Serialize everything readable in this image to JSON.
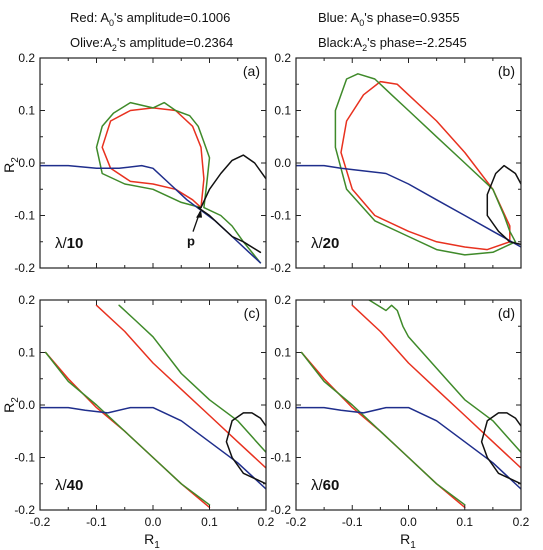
{
  "legend": [
    {
      "id": "red",
      "text": "Red: A0's amplitude=0.1006",
      "main": "Red: A",
      "sub": "0",
      "rest": "'s amplitude=0.1006"
    },
    {
      "id": "blue",
      "text": "Blue: A0's phase=0.9355",
      "main": "Blue: A",
      "sub": "0",
      "rest": "'s phase=0.9355"
    },
    {
      "id": "olive",
      "text": "Olive:A2's amplitude=0.2364",
      "main": "Olive:A",
      "sub": "2",
      "rest": "'s amplitude=0.2364"
    },
    {
      "id": "black",
      "text": "Black:A2's phase=-2.2545",
      "main": "Black:A",
      "sub": "2",
      "rest": "'s phase=-2.2545"
    }
  ],
  "axes": {
    "xlabel_main": "R",
    "xlabel_sub": "1",
    "ylabel_main": "R",
    "ylabel_sub": "2",
    "xlim": [
      -0.2,
      0.2
    ],
    "ylim": [
      -0.2,
      0.2
    ],
    "xticks": [
      "-0.2",
      "-0.1",
      "0.0",
      "0.1",
      "0.2"
    ],
    "yticks": [
      "-0.2",
      "-0.1",
      "0.0",
      "0.1",
      "0.2"
    ]
  },
  "colors": {
    "red": "#e8311f",
    "blue": "#1f2e8c",
    "olive": "#3f8a2a",
    "black": "#111111"
  },
  "chart_data": [
    {
      "type": "line",
      "panel": "(a)",
      "lambda_symbol": "λ/",
      "lambda_value": "10",
      "point_label": "p",
      "series": [
        {
          "color": "red",
          "x": [
            0.085,
            0.07,
            0.04,
            0.0,
            -0.04,
            -0.075,
            -0.09,
            -0.075,
            -0.04,
            0.0,
            0.04,
            0.07,
            0.085,
            0.09,
            0.085
          ],
          "y": [
            -0.085,
            -0.07,
            -0.05,
            -0.04,
            -0.035,
            -0.01,
            0.03,
            0.08,
            0.1,
            0.105,
            0.1,
            0.07,
            0.03,
            -0.03,
            -0.085
          ]
        },
        {
          "color": "olive",
          "x": [
            0.085,
            0.05,
            0.0,
            -0.05,
            -0.09,
            -0.1,
            -0.09,
            -0.07,
            -0.04,
            0.0,
            0.02,
            0.04,
            0.065,
            0.08,
            0.09,
            0.1,
            0.095,
            0.09,
            0.12,
            0.14,
            0.16,
            0.19
          ],
          "y": [
            -0.085,
            -0.075,
            -0.05,
            -0.04,
            -0.02,
            0.03,
            0.07,
            0.095,
            0.115,
            0.105,
            0.115,
            0.1,
            0.09,
            0.07,
            0.04,
            0.01,
            -0.04,
            -0.085,
            -0.1,
            -0.12,
            -0.15,
            -0.19
          ]
        },
        {
          "color": "blue",
          "x": [
            -0.2,
            -0.15,
            -0.1,
            -0.06,
            -0.02,
            0.0,
            0.03,
            0.06,
            0.085,
            0.11,
            0.14,
            0.17,
            0.19
          ],
          "y": [
            -0.005,
            -0.005,
            -0.01,
            -0.01,
            -0.005,
            -0.01,
            -0.04,
            -0.07,
            -0.09,
            -0.11,
            -0.14,
            -0.17,
            -0.19
          ]
        },
        {
          "color": "black",
          "x": [
            0.2,
            0.18,
            0.16,
            0.14,
            0.12,
            0.1,
            0.085,
            0.08,
            0.1,
            0.12,
            0.14,
            0.16,
            0.19
          ],
          "y": [
            -0.03,
            0.0,
            0.015,
            0.005,
            -0.02,
            -0.05,
            -0.085,
            -0.085,
            -0.1,
            -0.12,
            -0.14,
            -0.15,
            -0.17
          ]
        }
      ]
    },
    {
      "type": "line",
      "panel": "(b)",
      "lambda_symbol": "λ/",
      "lambda_value": "20",
      "series": [
        {
          "color": "red",
          "x": [
            0.18,
            0.14,
            0.1,
            0.05,
            0.0,
            -0.06,
            -0.1,
            -0.12,
            -0.11,
            -0.08,
            -0.05,
            -0.02,
            0.0,
            0.05,
            0.1,
            0.15,
            0.18,
            0.18
          ],
          "y": [
            -0.15,
            -0.165,
            -0.16,
            -0.15,
            -0.13,
            -0.1,
            -0.05,
            0.02,
            0.08,
            0.13,
            0.155,
            0.15,
            0.13,
            0.08,
            0.02,
            -0.05,
            -0.12,
            -0.15
          ]
        },
        {
          "color": "olive",
          "x": [
            0.19,
            0.15,
            0.1,
            0.05,
            0.0,
            -0.06,
            -0.11,
            -0.13,
            -0.13,
            -0.11,
            -0.09,
            -0.06,
            -0.03,
            0.0,
            0.05,
            0.1,
            0.15,
            0.17,
            0.18,
            0.19
          ],
          "y": [
            -0.15,
            -0.17,
            -0.175,
            -0.165,
            -0.14,
            -0.11,
            -0.05,
            0.03,
            0.1,
            0.16,
            0.17,
            0.16,
            0.13,
            0.1,
            0.05,
            0.0,
            -0.05,
            -0.1,
            -0.13,
            -0.15
          ]
        },
        {
          "color": "blue",
          "x": [
            -0.2,
            -0.15,
            -0.12,
            -0.08,
            -0.04,
            0.0,
            0.05,
            0.1,
            0.15,
            0.2
          ],
          "y": [
            -0.005,
            -0.005,
            -0.01,
            -0.015,
            -0.02,
            -0.04,
            -0.07,
            -0.1,
            -0.13,
            -0.16
          ]
        },
        {
          "color": "black",
          "x": [
            0.2,
            0.19,
            0.17,
            0.155,
            0.14,
            0.14,
            0.16,
            0.18,
            0.2
          ],
          "y": [
            -0.04,
            -0.02,
            -0.005,
            -0.02,
            -0.06,
            -0.1,
            -0.13,
            -0.15,
            -0.155
          ]
        }
      ]
    },
    {
      "type": "line",
      "panel": "(c)",
      "lambda_symbol": "λ/",
      "lambda_value": "40",
      "series": [
        {
          "color": "red",
          "x": [
            -0.1,
            -0.05,
            0.0,
            0.05,
            0.1,
            0.15,
            0.2
          ],
          "y": [
            0.19,
            0.14,
            0.08,
            0.03,
            -0.02,
            -0.07,
            -0.12
          ],
          "offset": 0
        },
        {
          "color": "red",
          "x": [
            -0.19,
            -0.15,
            -0.1,
            -0.05,
            0.0,
            0.05,
            0.1
          ],
          "y": [
            0.1,
            0.05,
            -0.005,
            -0.05,
            -0.1,
            -0.15,
            -0.195
          ]
        },
        {
          "color": "olive",
          "x": [
            -0.06,
            -0.03,
            0.0,
            0.05,
            0.1,
            0.15,
            0.2
          ],
          "y": [
            0.19,
            0.16,
            0.13,
            0.06,
            0.01,
            -0.03,
            -0.09
          ]
        },
        {
          "color": "olive",
          "x": [
            -0.19,
            -0.15,
            -0.1,
            -0.06,
            -0.02,
            0.0,
            0.05,
            0.1
          ],
          "y": [
            0.1,
            0.045,
            0.0,
            -0.04,
            -0.08,
            -0.1,
            -0.15,
            -0.19
          ]
        },
        {
          "color": "blue",
          "x": [
            -0.2,
            -0.15,
            -0.12,
            -0.08,
            -0.04,
            0.0,
            0.05,
            0.1,
            0.15,
            0.2
          ],
          "y": [
            -0.005,
            -0.005,
            -0.01,
            -0.015,
            -0.005,
            -0.005,
            -0.03,
            -0.07,
            -0.11,
            -0.16
          ]
        },
        {
          "color": "black",
          "x": [
            0.2,
            0.19,
            0.175,
            0.16,
            0.14,
            0.13,
            0.14,
            0.16,
            0.2
          ],
          "y": [
            -0.04,
            -0.025,
            -0.015,
            -0.015,
            -0.03,
            -0.07,
            -0.1,
            -0.13,
            -0.15
          ]
        }
      ]
    },
    {
      "type": "line",
      "panel": "(d)",
      "lambda_symbol": "λ/",
      "lambda_value": "60",
      "series": [
        {
          "color": "red",
          "x": [
            -0.1,
            -0.05,
            0.0,
            0.05,
            0.1,
            0.15,
            0.2
          ],
          "y": [
            0.19,
            0.14,
            0.08,
            0.03,
            -0.02,
            -0.07,
            -0.12
          ]
        },
        {
          "color": "red",
          "x": [
            -0.19,
            -0.15,
            -0.1,
            -0.05,
            0.0,
            0.05,
            0.1
          ],
          "y": [
            0.1,
            0.05,
            -0.005,
            -0.05,
            -0.1,
            -0.15,
            -0.195
          ]
        },
        {
          "color": "olive",
          "x": [
            -0.07,
            -0.04,
            -0.03,
            -0.02,
            -0.01,
            0.0,
            0.05,
            0.1,
            0.15,
            0.2
          ],
          "y": [
            0.2,
            0.18,
            0.19,
            0.18,
            0.15,
            0.13,
            0.07,
            0.01,
            -0.03,
            -0.09
          ]
        },
        {
          "color": "olive",
          "x": [
            -0.19,
            -0.15,
            -0.1,
            -0.06,
            -0.02,
            0.0,
            0.05,
            0.1
          ],
          "y": [
            0.1,
            0.045,
            0.0,
            -0.04,
            -0.08,
            -0.1,
            -0.15,
            -0.19
          ]
        },
        {
          "color": "blue",
          "x": [
            -0.2,
            -0.15,
            -0.12,
            -0.08,
            -0.04,
            0.0,
            0.05,
            0.1,
            0.15,
            0.2
          ],
          "y": [
            -0.005,
            -0.005,
            -0.01,
            -0.015,
            -0.005,
            -0.005,
            -0.03,
            -0.07,
            -0.11,
            -0.16
          ]
        },
        {
          "color": "black",
          "x": [
            0.2,
            0.19,
            0.175,
            0.16,
            0.14,
            0.13,
            0.14,
            0.16,
            0.2
          ],
          "y": [
            -0.04,
            -0.025,
            -0.015,
            -0.015,
            -0.03,
            -0.07,
            -0.1,
            -0.13,
            -0.15
          ]
        }
      ]
    }
  ]
}
